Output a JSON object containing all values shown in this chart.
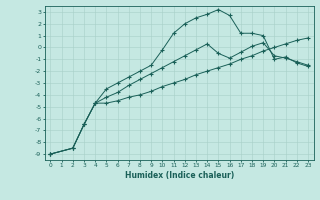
{
  "xlabel": "Humidex (Indice chaleur)",
  "background_color": "#c5e8e2",
  "grid_color": "#a8d0c8",
  "line_color": "#1a6058",
  "xlim": [
    -0.5,
    23.5
  ],
  "ylim": [
    -9.5,
    3.5
  ],
  "xticks": [
    0,
    1,
    2,
    3,
    4,
    5,
    6,
    7,
    8,
    9,
    10,
    11,
    12,
    13,
    14,
    15,
    16,
    17,
    18,
    19,
    20,
    21,
    22,
    23
  ],
  "yticks": [
    3,
    2,
    1,
    0,
    -1,
    -2,
    -3,
    -4,
    -5,
    -6,
    -7,
    -8,
    -9
  ],
  "line_top_x": [
    0,
    2,
    3,
    4,
    5,
    6,
    7,
    8,
    9,
    10,
    11,
    12,
    13,
    14,
    15,
    16,
    17,
    18,
    19,
    20,
    21,
    22,
    23
  ],
  "line_top_y": [
    -9,
    -8.5,
    -6.5,
    -4.7,
    -3.5,
    -3.0,
    -2.5,
    -2.0,
    -1.5,
    -0.2,
    1.2,
    2.0,
    2.5,
    2.8,
    3.2,
    2.7,
    1.2,
    1.2,
    1.0,
    -1.0,
    -0.8,
    -1.3,
    -1.6
  ],
  "line_mid_x": [
    0,
    2,
    3,
    4,
    5,
    6,
    7,
    8,
    9,
    10,
    11,
    12,
    13,
    14,
    15,
    16,
    17,
    18,
    19,
    20,
    21,
    22,
    23
  ],
  "line_mid_y": [
    -9,
    -8.5,
    -6.5,
    -4.7,
    -4.2,
    -3.8,
    -3.2,
    -2.7,
    -2.2,
    -1.7,
    -1.2,
    -0.7,
    -0.2,
    0.3,
    -0.5,
    -0.9,
    -0.4,
    0.1,
    0.4,
    -0.7,
    -0.9,
    -1.2,
    -1.5
  ],
  "line_bot_x": [
    0,
    2,
    3,
    4,
    5,
    6,
    7,
    8,
    9,
    10,
    11,
    12,
    13,
    14,
    15,
    16,
    17,
    18,
    19,
    20,
    21,
    22,
    23
  ],
  "line_bot_y": [
    -9,
    -8.5,
    -6.5,
    -4.7,
    -4.7,
    -4.5,
    -4.2,
    -4.0,
    -3.7,
    -3.3,
    -3.0,
    -2.7,
    -2.3,
    -2.0,
    -1.7,
    -1.4,
    -1.0,
    -0.7,
    -0.3,
    0.0,
    0.3,
    0.6,
    0.8
  ]
}
